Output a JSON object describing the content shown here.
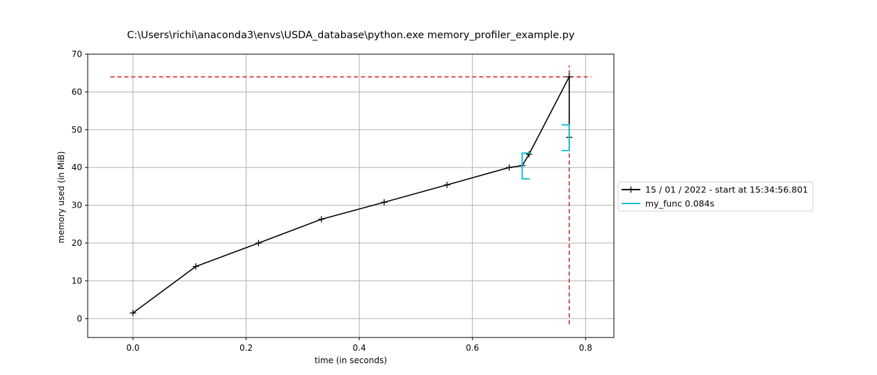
{
  "chart_data": {
    "type": "line",
    "title": "C:\\Users\\richi\\anaconda3\\envs\\USDA_database\\python.exe memory_profiler_example.py",
    "xlabel": "time (in seconds)",
    "ylabel": "memory used (in MiB)",
    "xlim": [
      -0.08,
      0.85
    ],
    "ylim": [
      -5,
      70
    ],
    "xticks": [
      0.0,
      0.2,
      0.4,
      0.6,
      0.8
    ],
    "xtick_labels": [
      "0.0",
      "0.2",
      "0.4",
      "0.6",
      "0.8"
    ],
    "yticks": [
      0,
      10,
      20,
      30,
      40,
      50,
      60,
      70
    ],
    "ytick_labels": [
      "0",
      "10",
      "20",
      "30",
      "40",
      "50",
      "60",
      "70"
    ],
    "grid": true,
    "legend_position": "right",
    "series": [
      {
        "name": "15 / 01 / 2022 - start at 15:34:56.801",
        "color": "#000000",
        "marker": "+",
        "x": [
          0.0,
          0.111,
          0.222,
          0.333,
          0.444,
          0.555,
          0.665,
          0.688,
          0.7,
          0.771,
          0.771
        ],
        "y": [
          1.5,
          13.8,
          20.0,
          26.3,
          30.8,
          35.4,
          40.0,
          40.5,
          43.5,
          64.0,
          48.0
        ]
      }
    ],
    "function_brackets": [
      {
        "name": "my_func 0.084s",
        "color": "#17becf",
        "brackets": [
          {
            "side": "left",
            "x": 0.688,
            "y_start": 37.0,
            "y_end": 43.8
          },
          {
            "side": "right",
            "x": 0.771,
            "y_start": 44.5,
            "y_end": 51.3
          }
        ]
      }
    ],
    "peak_lines": {
      "color": "#d62728",
      "horizontal_y": 64.0,
      "horizontal_x_range": [
        -0.04,
        0.81
      ],
      "vertical_x": 0.771,
      "vertical_y_range": [
        -1.5,
        67.0
      ]
    },
    "legend": [
      {
        "label": "15 / 01 / 2022 - start at 15:34:56.801",
        "color": "#000000",
        "marker": "+"
      },
      {
        "label": "my_func 0.084s",
        "color": "#17becf",
        "marker": "line"
      }
    ]
  }
}
